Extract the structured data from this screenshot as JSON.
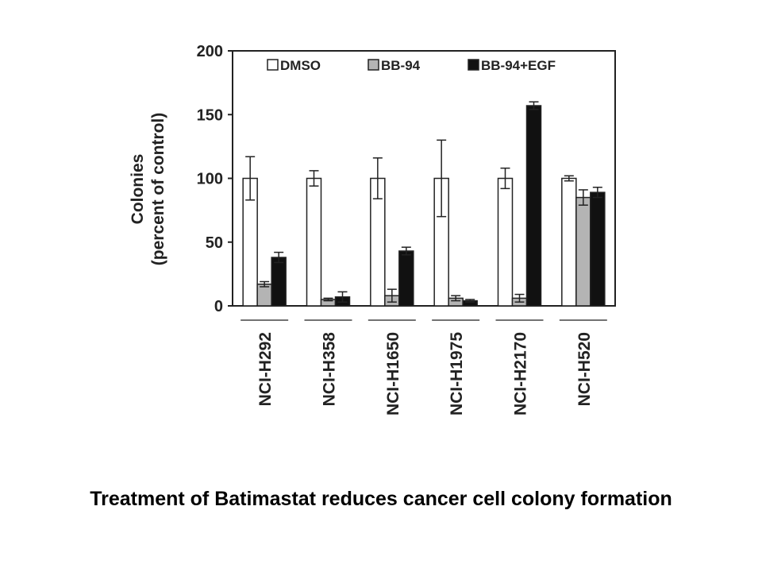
{
  "caption": "Treatment of Batimastat reduces cancer cell colony formation",
  "chart_data": {
    "type": "bar",
    "ylabel_line1": "Colonies",
    "ylabel_line2": "(percent of control)",
    "ylim": [
      0,
      200
    ],
    "yticks": [
      0,
      50,
      100,
      150,
      200
    ],
    "legend_position": "top",
    "categories": [
      "NCI-H292",
      "NCI-H358",
      "NCI-H1650",
      "NCI-H1975",
      "NCI-H2170",
      "NCI-H520"
    ],
    "series": [
      {
        "name": "DMSO",
        "color": "#ffffff",
        "values": [
          100,
          100,
          100,
          100,
          100,
          100
        ],
        "errors": [
          17,
          6,
          16,
          30,
          8,
          2
        ]
      },
      {
        "name": "BB-94",
        "color": "#b4b4b4",
        "values": [
          17,
          5,
          8,
          6,
          6,
          85
        ],
        "errors": [
          2,
          1,
          5,
          2,
          3,
          6
        ]
      },
      {
        "name": "BB-94+EGF",
        "color": "#111111",
        "values": [
          38,
          7,
          43,
          4,
          157,
          89
        ],
        "errors": [
          4,
          4,
          3,
          1,
          3,
          4
        ]
      }
    ]
  }
}
